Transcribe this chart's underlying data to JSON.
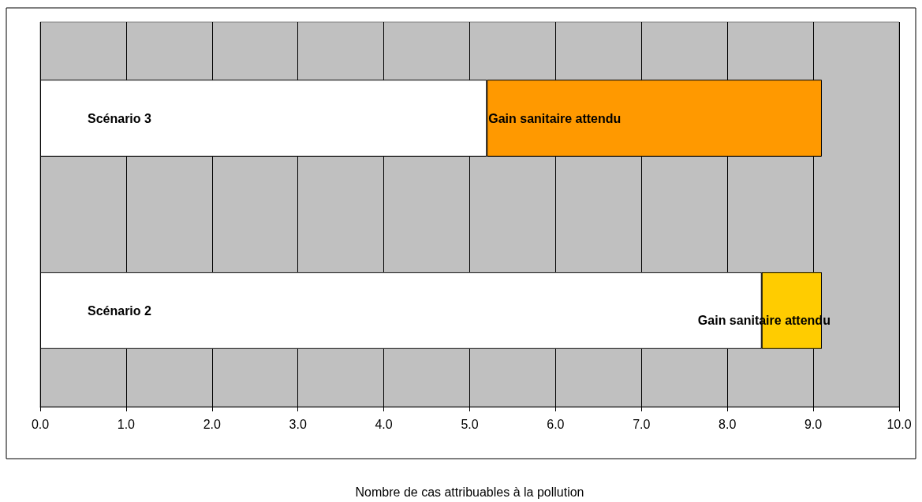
{
  "chart_data": {
    "type": "bar",
    "orientation": "horizontal",
    "stacked": true,
    "xlabel": "Nombre de cas attribuables à la pollution",
    "categories": [
      "Scénario 3",
      "Scénario 2"
    ],
    "series": [
      {
        "color": "#ffffff",
        "values": [
          5.2,
          8.4
        ]
      },
      {
        "name": "Gain sanitaire attendu",
        "colors": [
          "#ff9900",
          "#ffcc00"
        ],
        "values": [
          3.9,
          0.7
        ]
      }
    ],
    "xlim": [
      0,
      10
    ],
    "xticks": [
      {
        "value": 0,
        "label": "0.0"
      },
      {
        "value": 1,
        "label": "1.0"
      },
      {
        "value": 2,
        "label": "2.0"
      },
      {
        "value": 3,
        "label": "3.0"
      },
      {
        "value": 4,
        "label": "4.0"
      },
      {
        "value": 5,
        "label": "5.0"
      },
      {
        "value": 6,
        "label": "6.0"
      },
      {
        "value": 7,
        "label": "7.0"
      },
      {
        "value": 8,
        "label": "8.0"
      },
      {
        "value": 9,
        "label": "9.0"
      },
      {
        "value": 10,
        "label": "10.0"
      }
    ],
    "grid": "x",
    "legend": false
  }
}
